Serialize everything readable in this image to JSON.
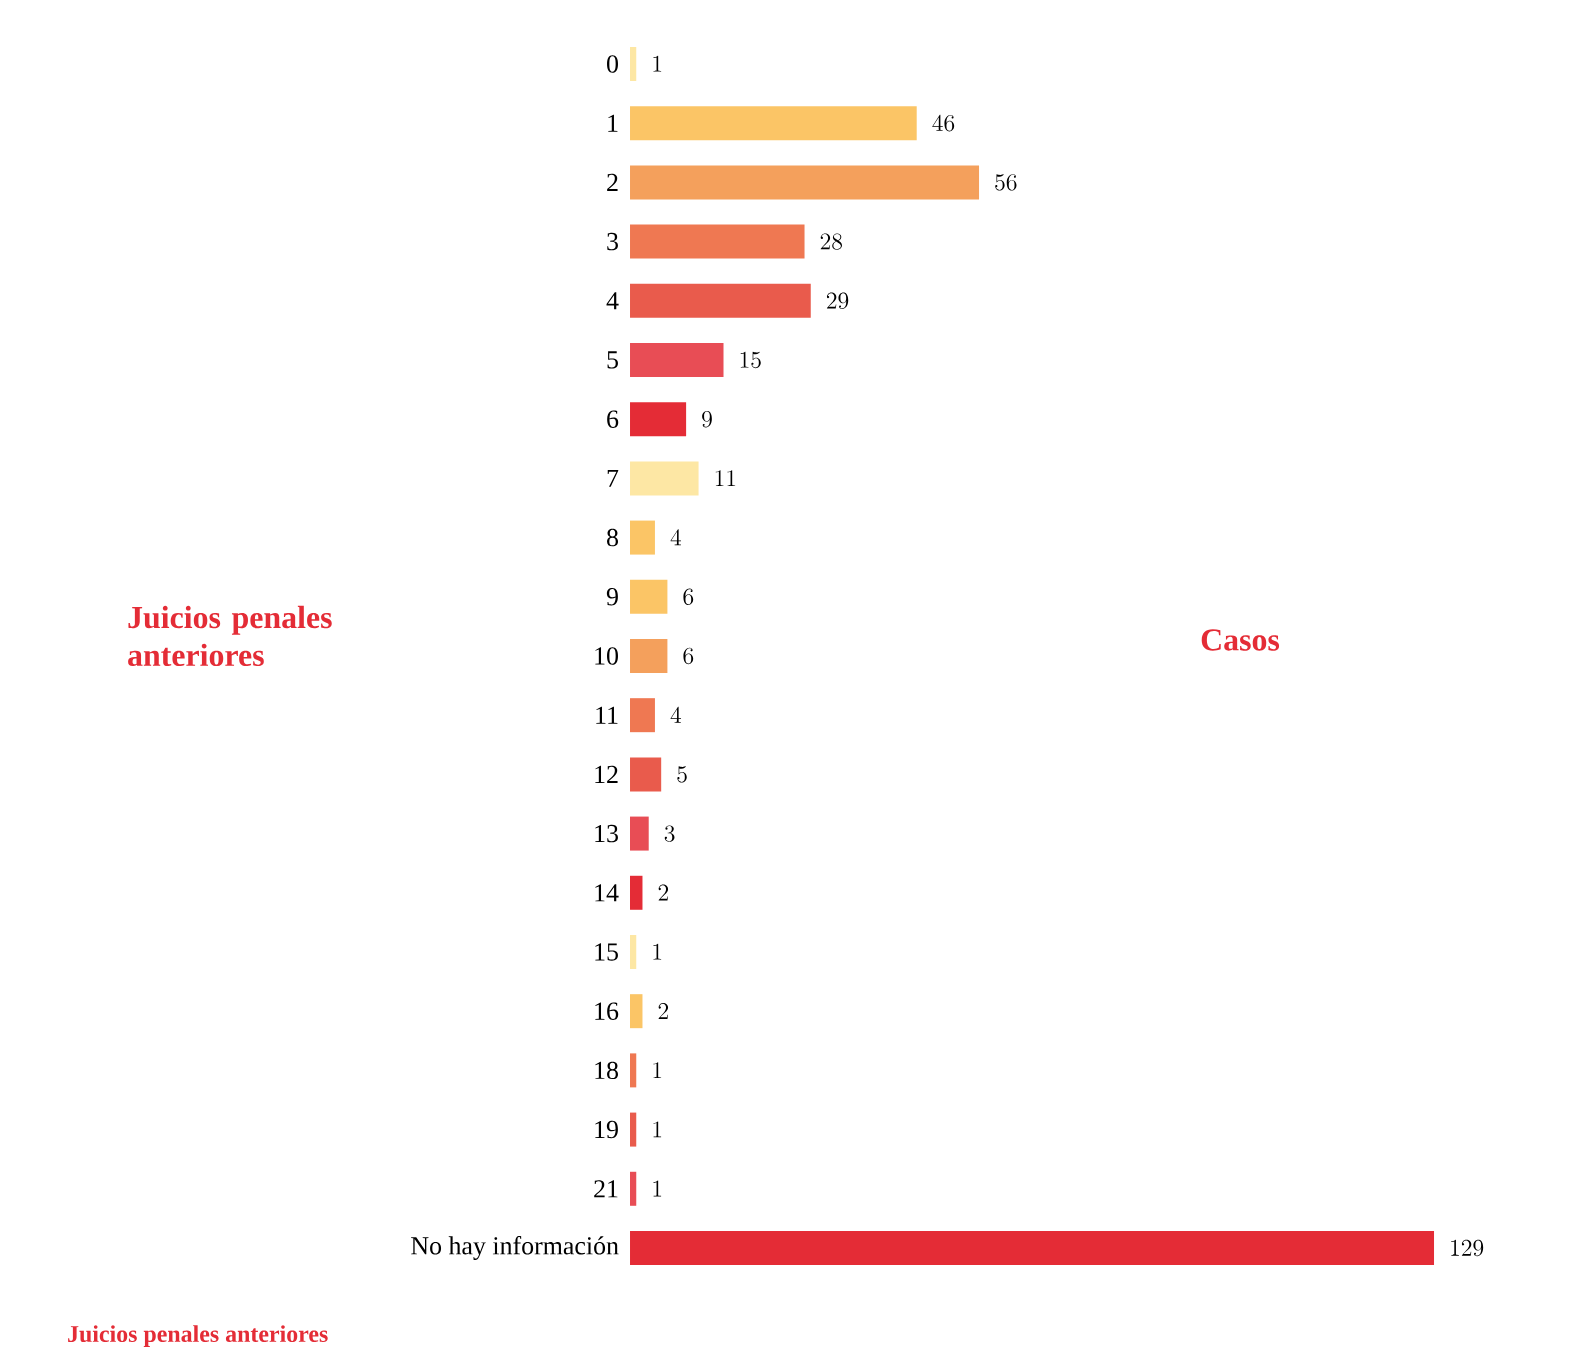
{
  "chart_data": {
    "type": "bar",
    "orientation": "horizontal",
    "data_labels": true,
    "xlabel": "Casos",
    "ylabel": "Juicios penales anteriores",
    "annotations": [
      "Juicios penales anteriores"
    ],
    "categories": [
      "0",
      "1",
      "2",
      "3",
      "4",
      "5",
      "6",
      "7",
      "8",
      "9",
      "10",
      "11",
      "12",
      "13",
      "14",
      "15",
      "16",
      "18",
      "19",
      "21",
      "No hay información"
    ],
    "values": [
      1,
      46,
      56,
      28,
      29,
      15,
      9,
      11,
      4,
      6,
      6,
      4,
      5,
      3,
      2,
      1,
      2,
      1,
      1,
      1,
      129
    ],
    "colors": [
      "#fde7a4",
      "#fbc566",
      "#f4a05c",
      "#ef7852",
      "#e95b4c",
      "#e84d55",
      "#e42c36",
      "#fde7a4",
      "#fbc566",
      "#fbc566",
      "#f4a05c",
      "#ef7852",
      "#e95b4c",
      "#e84d55",
      "#e42c36",
      "#fde7a4",
      "#fbc566",
      "#ef7852",
      "#e95b4c",
      "#e84d55",
      "#e42c36"
    ]
  }
}
